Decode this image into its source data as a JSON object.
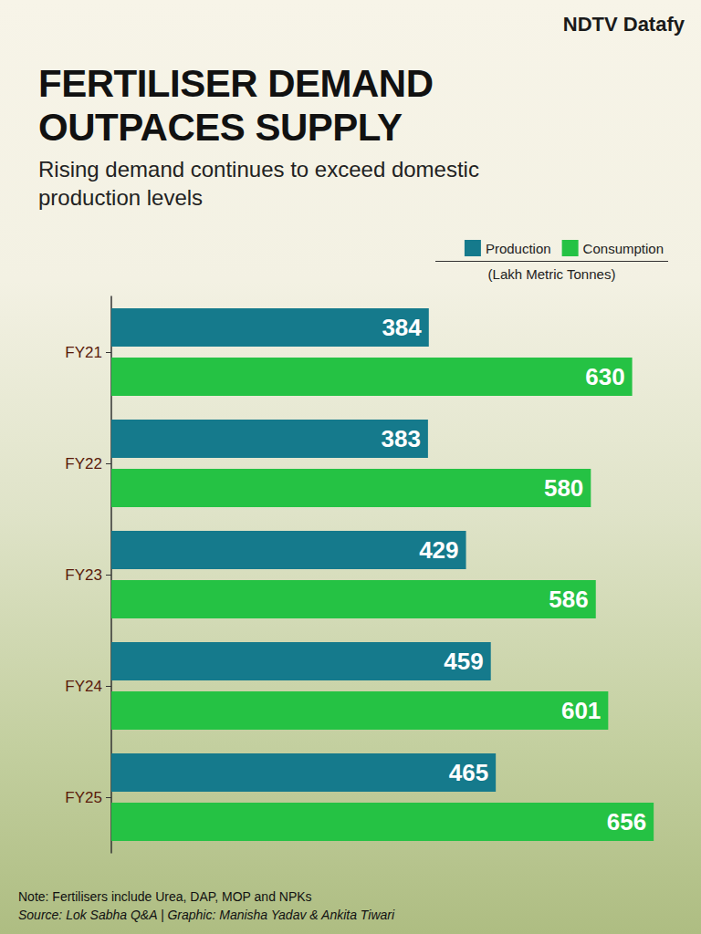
{
  "chart_data": {
    "type": "bar",
    "orientation": "horizontal",
    "brand": "NDTV Datafy",
    "title": "FERTILISER DEMAND OUTPACES SUPPLY",
    "subtitle": "Rising demand continues to exceed domestic production levels",
    "unit": "(Lakh Metric Tonnes)",
    "categories": [
      "FY21",
      "FY22",
      "FY23",
      "FY24",
      "FY25"
    ],
    "series": [
      {
        "name": "Production",
        "color": "#157a8c",
        "values": [
          384,
          383,
          429,
          459,
          465
        ]
      },
      {
        "name": "Consumption",
        "color": "#25c244",
        "values": [
          630,
          580,
          586,
          601,
          656
        ]
      }
    ],
    "xlim": [
      0,
      700
    ],
    "data_labels": true,
    "tick_labels": "y",
    "grid": false,
    "legend": "top-right",
    "note": "Note: Fertilisers include Urea, DAP, MOP and NPKs",
    "source": "Source: Lok Sabha Q&A | Graphic: Manisha Yadav & Ankita Tiwari"
  }
}
